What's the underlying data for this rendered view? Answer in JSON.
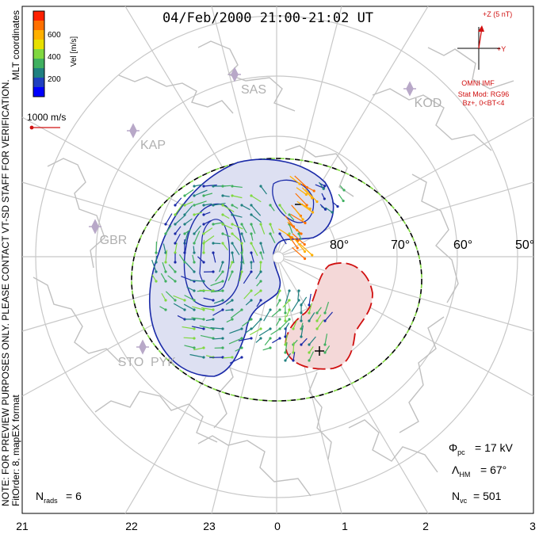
{
  "title": "04/Feb/2000 21:00-21:02 UT",
  "side_labels": {
    "coordinates": "MLT coordinates",
    "note": "NOTE: FOR PREVIEW PURPOSES ONLY. PLEASE CONTACT VT-SD STAFF FOR VERIFICATION.",
    "fit_info": "FitOrder: 8, mapEX format"
  },
  "colorbar": {
    "title": "Vel [m/s]",
    "ticks": [
      "600",
      "400",
      "200"
    ],
    "colors": [
      "#ff2000",
      "#ff7000",
      "#ffb000",
      "#e8e000",
      "#80d840",
      "#40b060",
      "#208080",
      "#2040c0",
      "#0000ff"
    ]
  },
  "velocity_scale": {
    "label": "1000 m/s",
    "color": "#d01010"
  },
  "imf": {
    "z_label": "+Z (5 nT)",
    "y_label": "+Y",
    "source": "OMNI IMF",
    "model": "Stat Mod: RG96",
    "condition": "Bz+, 0<BT<4",
    "color": "#d01010"
  },
  "stations": [
    "SAS",
    "KAP",
    "GBR",
    "STO",
    "PYK",
    "KOD"
  ],
  "latitude_labels": [
    "80°",
    "70°",
    "60°",
    "50°"
  ],
  "mlt_labels": [
    "21",
    "22",
    "23",
    "0",
    "1",
    "2",
    "3"
  ],
  "stats": {
    "phi_symbol": "Φ",
    "phi_sub": "pc",
    "phi_value": "=  17 kV",
    "lambda_symbol": "Λ",
    "lambda_sub": "HM",
    "lambda_value": "=  67°",
    "nvc_symbol": "N",
    "nvc_sub": "vc",
    "nvc_value": "=  501",
    "nrads_symbol": "N",
    "nrads_sub": "rads",
    "nrads_value": "=  6"
  },
  "colors": {
    "grid": "#c8c8c8",
    "coast": "#c0c0c0",
    "neg_fill": "#dde0f2",
    "neg_line": "#1a2aa8",
    "pos_fill": "#f4d8d8",
    "pos_line": "#d01010",
    "station": "#b8a8c8"
  }
}
